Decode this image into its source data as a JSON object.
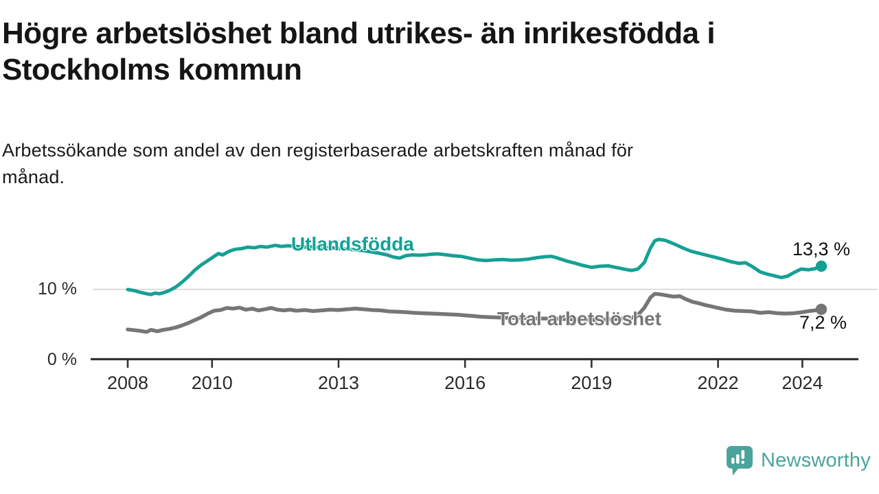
{
  "title": "Högre arbetslöshet bland utrikes- än inrikesfödda i Stockholms kommun",
  "title_lines": [
    "Högre arbetslöshet bland utrikes- än inrikesfödda i",
    "Stockholms kommun"
  ],
  "subtitle_lines": [
    "Arbetssökande som andel av den registerbaserade arbetskraften månad för",
    "månad."
  ],
  "branding": {
    "logo_text": "Newsworthy",
    "logo_icon": "speech-bubble-bar-chart",
    "color": "#4ba49c"
  },
  "chart_data": {
    "type": "line",
    "unit": "%",
    "grid": "horizontal gridline at 10% only",
    "legend_position": "inline labels on lines, end-value labels at right",
    "x_axis": {
      "range": [
        2008,
        2024.45
      ],
      "ticks": [
        {
          "label": "2008",
          "year": 2008
        },
        {
          "label": "2010",
          "year": 2010
        },
        {
          "label": "2013",
          "year": 2013
        },
        {
          "label": "2016",
          "year": 2016
        },
        {
          "label": "2019",
          "year": 2019
        },
        {
          "label": "2022",
          "year": 2022
        },
        {
          "label": "2024",
          "year": 2024
        }
      ]
    },
    "y_axis": {
      "range": [
        0,
        18
      ],
      "ticks": [
        {
          "label": "0 %",
          "value": 0
        },
        {
          "label": "10 %",
          "value": 10
        }
      ]
    },
    "series": [
      {
        "name": "Utlandsfödda",
        "color": "#16a095",
        "end_value": 13.3,
        "end_label": "13,3 %",
        "points": [
          [
            2008.0,
            10.0
          ],
          [
            2008.15,
            9.85
          ],
          [
            2008.3,
            9.6
          ],
          [
            2008.45,
            9.4
          ],
          [
            2008.55,
            9.3
          ],
          [
            2008.65,
            9.5
          ],
          [
            2008.75,
            9.4
          ],
          [
            2008.9,
            9.65
          ],
          [
            2009.0,
            9.9
          ],
          [
            2009.15,
            10.4
          ],
          [
            2009.3,
            11.1
          ],
          [
            2009.45,
            11.9
          ],
          [
            2009.6,
            12.8
          ],
          [
            2009.75,
            13.5
          ],
          [
            2009.9,
            14.1
          ],
          [
            2010.05,
            14.7
          ],
          [
            2010.15,
            15.1
          ],
          [
            2010.25,
            14.9
          ],
          [
            2010.4,
            15.4
          ],
          [
            2010.55,
            15.7
          ],
          [
            2010.7,
            15.8
          ],
          [
            2010.85,
            16.0
          ],
          [
            2011.0,
            15.9
          ],
          [
            2011.15,
            16.1
          ],
          [
            2011.3,
            16.0
          ],
          [
            2011.5,
            16.25
          ],
          [
            2011.65,
            16.1
          ],
          [
            2011.8,
            16.2
          ],
          [
            2012.0,
            16.1
          ],
          [
            2012.2,
            16.0
          ],
          [
            2012.4,
            16.05
          ],
          [
            2012.6,
            15.9
          ],
          [
            2012.8,
            15.95
          ],
          [
            2013.0,
            15.8
          ],
          [
            2013.2,
            15.75
          ],
          [
            2013.4,
            15.6
          ],
          [
            2013.6,
            15.5
          ],
          [
            2013.8,
            15.3
          ],
          [
            2014.0,
            15.1
          ],
          [
            2014.15,
            14.9
          ],
          [
            2014.3,
            14.6
          ],
          [
            2014.45,
            14.45
          ],
          [
            2014.6,
            14.8
          ],
          [
            2014.75,
            14.9
          ],
          [
            2014.9,
            14.85
          ],
          [
            2015.05,
            14.9
          ],
          [
            2015.2,
            15.0
          ],
          [
            2015.35,
            15.05
          ],
          [
            2015.5,
            14.95
          ],
          [
            2015.7,
            14.8
          ],
          [
            2015.9,
            14.7
          ],
          [
            2016.1,
            14.45
          ],
          [
            2016.3,
            14.2
          ],
          [
            2016.5,
            14.1
          ],
          [
            2016.7,
            14.2
          ],
          [
            2016.9,
            14.25
          ],
          [
            2017.1,
            14.15
          ],
          [
            2017.3,
            14.2
          ],
          [
            2017.5,
            14.3
          ],
          [
            2017.7,
            14.5
          ],
          [
            2017.9,
            14.65
          ],
          [
            2018.05,
            14.7
          ],
          [
            2018.2,
            14.45
          ],
          [
            2018.4,
            14.05
          ],
          [
            2018.6,
            13.75
          ],
          [
            2018.8,
            13.4
          ],
          [
            2019.0,
            13.15
          ],
          [
            2019.2,
            13.3
          ],
          [
            2019.4,
            13.35
          ],
          [
            2019.6,
            13.1
          ],
          [
            2019.8,
            12.85
          ],
          [
            2019.95,
            12.7
          ],
          [
            2020.1,
            12.9
          ],
          [
            2020.25,
            13.8
          ],
          [
            2020.4,
            15.9
          ],
          [
            2020.5,
            16.9
          ],
          [
            2020.6,
            17.1
          ],
          [
            2020.75,
            16.95
          ],
          [
            2020.9,
            16.6
          ],
          [
            2021.05,
            16.2
          ],
          [
            2021.2,
            15.8
          ],
          [
            2021.35,
            15.45
          ],
          [
            2021.5,
            15.2
          ],
          [
            2021.7,
            14.9
          ],
          [
            2021.9,
            14.6
          ],
          [
            2022.1,
            14.3
          ],
          [
            2022.3,
            13.95
          ],
          [
            2022.5,
            13.7
          ],
          [
            2022.65,
            13.8
          ],
          [
            2022.8,
            13.3
          ],
          [
            2023.0,
            12.5
          ],
          [
            2023.15,
            12.2
          ],
          [
            2023.3,
            12.0
          ],
          [
            2023.5,
            11.7
          ],
          [
            2023.65,
            11.9
          ],
          [
            2023.8,
            12.4
          ],
          [
            2023.97,
            12.9
          ],
          [
            2024.14,
            12.8
          ],
          [
            2024.3,
            12.95
          ],
          [
            2024.45,
            13.3
          ]
        ]
      },
      {
        "name": "Total arbetslöshet",
        "color": "#767679",
        "end_value": 7.2,
        "end_label": "7,2 %",
        "points": [
          [
            2008.0,
            4.35
          ],
          [
            2008.15,
            4.25
          ],
          [
            2008.3,
            4.15
          ],
          [
            2008.45,
            4.0
          ],
          [
            2008.55,
            4.3
          ],
          [
            2008.7,
            4.1
          ],
          [
            2008.85,
            4.3
          ],
          [
            2009.0,
            4.45
          ],
          [
            2009.15,
            4.65
          ],
          [
            2009.3,
            4.95
          ],
          [
            2009.45,
            5.3
          ],
          [
            2009.6,
            5.7
          ],
          [
            2009.75,
            6.1
          ],
          [
            2009.9,
            6.6
          ],
          [
            2010.05,
            7.0
          ],
          [
            2010.2,
            7.1
          ],
          [
            2010.35,
            7.4
          ],
          [
            2010.5,
            7.3
          ],
          [
            2010.65,
            7.45
          ],
          [
            2010.8,
            7.15
          ],
          [
            2010.95,
            7.3
          ],
          [
            2011.1,
            7.05
          ],
          [
            2011.25,
            7.2
          ],
          [
            2011.4,
            7.4
          ],
          [
            2011.55,
            7.15
          ],
          [
            2011.7,
            7.05
          ],
          [
            2011.85,
            7.15
          ],
          [
            2012.0,
            7.0
          ],
          [
            2012.2,
            7.1
          ],
          [
            2012.4,
            6.95
          ],
          [
            2012.6,
            7.05
          ],
          [
            2012.8,
            7.15
          ],
          [
            2013.0,
            7.1
          ],
          [
            2013.2,
            7.2
          ],
          [
            2013.4,
            7.3
          ],
          [
            2013.6,
            7.2
          ],
          [
            2013.8,
            7.1
          ],
          [
            2014.0,
            7.05
          ],
          [
            2014.2,
            6.9
          ],
          [
            2014.4,
            6.85
          ],
          [
            2014.6,
            6.8
          ],
          [
            2014.8,
            6.7
          ],
          [
            2015.0,
            6.65
          ],
          [
            2015.2,
            6.6
          ],
          [
            2015.4,
            6.55
          ],
          [
            2015.6,
            6.5
          ],
          [
            2015.8,
            6.45
          ],
          [
            2016.0,
            6.35
          ],
          [
            2016.2,
            6.25
          ],
          [
            2016.4,
            6.15
          ],
          [
            2016.6,
            6.1
          ],
          [
            2016.8,
            6.05
          ],
          [
            2017.0,
            6.0
          ],
          [
            2017.25,
            6.0
          ],
          [
            2017.5,
            5.95
          ],
          [
            2017.75,
            5.9
          ],
          [
            2018.0,
            5.9
          ],
          [
            2018.25,
            5.85
          ],
          [
            2018.5,
            5.8
          ],
          [
            2018.75,
            5.75
          ],
          [
            2019.0,
            5.7
          ],
          [
            2019.25,
            5.75
          ],
          [
            2019.5,
            5.8
          ],
          [
            2019.75,
            5.9
          ],
          [
            2019.95,
            6.0
          ],
          [
            2020.1,
            6.4
          ],
          [
            2020.25,
            7.4
          ],
          [
            2020.4,
            8.9
          ],
          [
            2020.5,
            9.4
          ],
          [
            2020.65,
            9.3
          ],
          [
            2020.8,
            9.15
          ],
          [
            2020.95,
            9.0
          ],
          [
            2021.1,
            9.05
          ],
          [
            2021.25,
            8.6
          ],
          [
            2021.4,
            8.25
          ],
          [
            2021.55,
            8.05
          ],
          [
            2021.7,
            7.8
          ],
          [
            2021.85,
            7.6
          ],
          [
            2022.0,
            7.4
          ],
          [
            2022.2,
            7.15
          ],
          [
            2022.4,
            7.0
          ],
          [
            2022.6,
            6.95
          ],
          [
            2022.8,
            6.9
          ],
          [
            2023.0,
            6.7
          ],
          [
            2023.2,
            6.8
          ],
          [
            2023.4,
            6.65
          ],
          [
            2023.6,
            6.6
          ],
          [
            2023.8,
            6.65
          ],
          [
            2024.0,
            6.8
          ],
          [
            2024.15,
            6.95
          ],
          [
            2024.3,
            7.05
          ],
          [
            2024.45,
            7.2
          ]
        ]
      }
    ],
    "colors": {
      "axis": "#333333",
      "gridline": "#d4d4d4",
      "tick_label": "#2b2b2b"
    }
  }
}
